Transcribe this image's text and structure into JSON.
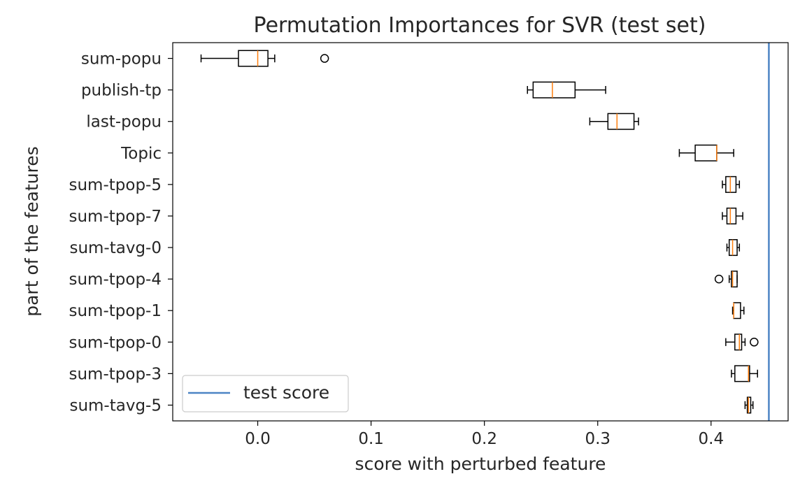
{
  "chart_data": {
    "type": "boxplot",
    "orientation": "horizontal",
    "title": "Permutation Importances for SVR (test set)",
    "xlabel": "score with perturbed feature",
    "ylabel": "part of the features",
    "xlim": [
      -0.075,
      0.468
    ],
    "xticks": [
      0.0,
      0.1,
      0.2,
      0.3,
      0.4
    ],
    "xtick_labels": [
      "0.0",
      "0.1",
      "0.2",
      "0.3",
      "0.4"
    ],
    "grid": false,
    "colors": {
      "box": "#000000",
      "median": "#ff7f0e",
      "reference_line": "#4c84c4"
    },
    "reference_line": {
      "label": "test score",
      "value": 0.451
    },
    "legend": {
      "position": "lower-left",
      "entries": [
        "test score"
      ]
    },
    "features": [
      {
        "name": "sum-popu",
        "whisker_low": -0.05,
        "q1": -0.017,
        "median": 0.0,
        "q3": 0.009,
        "whisker_high": 0.015,
        "outliers": [
          0.059
        ]
      },
      {
        "name": "publish-tp",
        "whisker_low": 0.238,
        "q1": 0.243,
        "median": 0.26,
        "q3": 0.28,
        "whisker_high": 0.307,
        "outliers": []
      },
      {
        "name": "last-popu",
        "whisker_low": 0.293,
        "q1": 0.309,
        "median": 0.317,
        "q3": 0.332,
        "whisker_high": 0.336,
        "outliers": []
      },
      {
        "name": "Topic",
        "whisker_low": 0.372,
        "q1": 0.386,
        "median": 0.405,
        "q3": 0.405,
        "whisker_high": 0.42,
        "outliers": []
      },
      {
        "name": "sum-tpop-5",
        "whisker_low": 0.41,
        "q1": 0.413,
        "median": 0.417,
        "q3": 0.422,
        "whisker_high": 0.425,
        "outliers": []
      },
      {
        "name": "sum-tpop-7",
        "whisker_low": 0.41,
        "q1": 0.414,
        "median": 0.417,
        "q3": 0.422,
        "whisker_high": 0.428,
        "outliers": []
      },
      {
        "name": "sum-tavg-0",
        "whisker_low": 0.414,
        "q1": 0.416,
        "median": 0.419,
        "q3": 0.423,
        "whisker_high": 0.425,
        "outliers": []
      },
      {
        "name": "sum-tpop-4",
        "whisker_low": 0.416,
        "q1": 0.418,
        "median": 0.419,
        "q3": 0.423,
        "whisker_high": 0.423,
        "outliers": [
          0.407
        ]
      },
      {
        "name": "sum-tpop-1",
        "whisker_low": 0.419,
        "q1": 0.42,
        "median": 0.42,
        "q3": 0.426,
        "whisker_high": 0.429,
        "outliers": []
      },
      {
        "name": "sum-tpop-0",
        "whisker_low": 0.413,
        "q1": 0.421,
        "median": 0.425,
        "q3": 0.427,
        "whisker_high": 0.43,
        "outliers": [
          0.438
        ]
      },
      {
        "name": "sum-tpop-3",
        "whisker_low": 0.418,
        "q1": 0.421,
        "median": 0.433,
        "q3": 0.434,
        "whisker_high": 0.441,
        "outliers": []
      },
      {
        "name": "sum-tavg-5",
        "whisker_low": 0.43,
        "q1": 0.432,
        "median": 0.433,
        "q3": 0.435,
        "whisker_high": 0.437,
        "outliers": []
      }
    ]
  }
}
